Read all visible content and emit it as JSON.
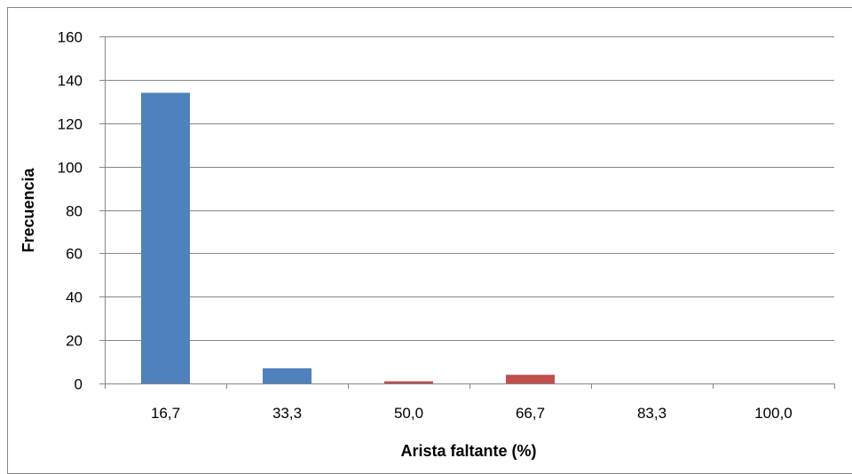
{
  "chart_data": {
    "type": "bar",
    "title": "",
    "xlabel": "Arista faltante (%)",
    "ylabel": "Frecuencia",
    "categories": [
      "16,7",
      "33,3",
      "50,0",
      "66,7",
      "83,3",
      "100,0"
    ],
    "values": [
      134,
      7,
      1,
      4,
      0,
      0
    ],
    "ylim": [
      0,
      160
    ],
    "yticks": [
      "0",
      "20",
      "40",
      "60",
      "80",
      "100",
      "120",
      "140",
      "160"
    ],
    "grid": true,
    "legend": "none",
    "colors": {
      "blue": "#4f81bd",
      "red": "#c0504d",
      "grid": "#868686",
      "border": "#868686"
    },
    "bar_colors": [
      "blue",
      "blue",
      "red",
      "red",
      "blue",
      "blue"
    ]
  }
}
